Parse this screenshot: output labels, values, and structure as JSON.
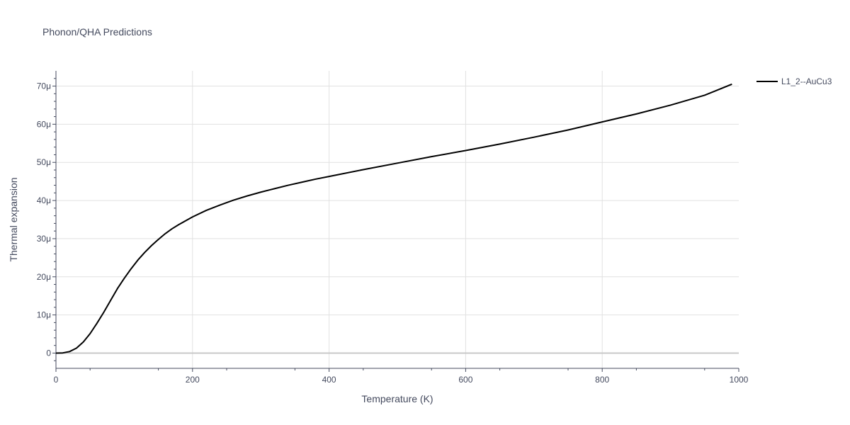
{
  "chart_data": {
    "type": "line",
    "title": "Phonon/QHA Predictions",
    "xlabel": "Temperature (K)",
    "ylabel": "Thermal expansion",
    "xlim": [
      0,
      1000
    ],
    "ylim": [
      -4,
      74
    ],
    "x_ticks": [
      0,
      200,
      400,
      600,
      800,
      1000
    ],
    "x_tick_labels": [
      "0",
      "200",
      "400",
      "600",
      "800",
      "1000"
    ],
    "y_ticks": [
      0,
      10,
      20,
      30,
      40,
      50,
      60,
      70
    ],
    "y_tick_labels": [
      "0",
      "10μ",
      "20μ",
      "30μ",
      "40μ",
      "50μ",
      "60μ",
      "70μ"
    ],
    "grid": true,
    "legend_position": "top-right",
    "series": [
      {
        "name": "L1_2--AuCu3",
        "color": "#000000",
        "x": [
          0,
          10,
          20,
          30,
          40,
          50,
          60,
          70,
          80,
          90,
          100,
          110,
          120,
          130,
          140,
          150,
          160,
          170,
          180,
          190,
          200,
          220,
          240,
          260,
          280,
          300,
          320,
          340,
          360,
          380,
          400,
          450,
          500,
          550,
          600,
          650,
          700,
          750,
          800,
          850,
          900,
          950,
          990
        ],
        "y": [
          0,
          0.05,
          0.4,
          1.3,
          2.9,
          5.1,
          7.8,
          10.7,
          13.8,
          16.9,
          19.6,
          22.1,
          24.4,
          26.4,
          28.2,
          29.8,
          31.3,
          32.6,
          33.7,
          34.7,
          35.7,
          37.4,
          38.8,
          40.1,
          41.2,
          42.2,
          43.1,
          44.0,
          44.8,
          45.6,
          46.3,
          48.1,
          49.8,
          51.5,
          53.1,
          54.8,
          56.6,
          58.5,
          60.6,
          62.7,
          65.0,
          67.6,
          70.5
        ]
      }
    ]
  }
}
